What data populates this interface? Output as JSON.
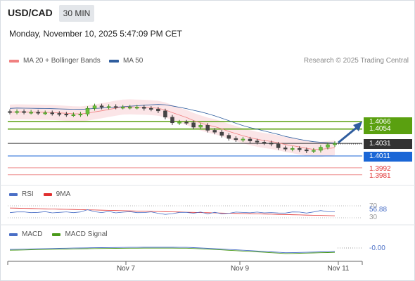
{
  "header": {
    "symbol": "USD/CAD",
    "interval": "30 MIN",
    "datetime": "Monday, November 10, 2025 5:47:09 PM CET"
  },
  "legend": {
    "ma20_label": "MA 20 + Bollinger Bands",
    "ma50_label": "MA 50",
    "copyright": "Research © 2025 Trading Central",
    "colors": {
      "ma20": "#f08080",
      "ma50": "#2f5d9e",
      "bands": "#fadadd"
    }
  },
  "price_levels": [
    {
      "value": "1.4066",
      "color": "#5aa010",
      "kind": "resistance"
    },
    {
      "value": "1.4054",
      "color": "#5aa010",
      "kind": "resistance"
    },
    {
      "value": "1.4031",
      "color": "#333333",
      "kind": "last"
    },
    {
      "value": "1.4011",
      "color": "#1a66d6",
      "kind": "pivot"
    },
    {
      "value": "1.3992",
      "color": "#e03030",
      "kind": "support"
    },
    {
      "value": "1.3981",
      "color": "#e03030",
      "kind": "support"
    }
  ],
  "rsi": {
    "label": "RSI",
    "ma_label": "9MA",
    "value": "56.88",
    "level_high": "70",
    "level_low": "30",
    "colors": {
      "rsi": "#4a6fc6",
      "ma": "#e03030"
    }
  },
  "macd": {
    "label": "MACD",
    "signal_label": "MACD Signal",
    "value": "-0.00",
    "colors": {
      "macd": "#4a6fc6",
      "signal": "#4a9a1a"
    }
  },
  "x_axis": {
    "dates": [
      "Nov 7",
      "Nov 9",
      "Nov 11"
    ]
  },
  "chart_data": {
    "type": "candlestick",
    "instrument": "USD/CAD",
    "timeframe": "30 MIN",
    "price_levels": [
      1.4066,
      1.4054,
      1.4031,
      1.4011,
      1.3992,
      1.3981
    ],
    "last_price": 1.4031,
    "closes": [
      1.4081,
      1.4082,
      1.4081,
      1.4081,
      1.408,
      1.408,
      1.4079,
      1.4078,
      1.4077,
      1.4077,
      1.4078,
      1.4087,
      1.4091,
      1.4089,
      1.409,
      1.4089,
      1.4089,
      1.4089,
      1.4089,
      1.4087,
      1.4086,
      1.4083,
      1.4073,
      1.4064,
      1.4065,
      1.4064,
      1.4057,
      1.406,
      1.4052,
      1.4049,
      1.4044,
      1.4039,
      1.4037,
      1.4038,
      1.4035,
      1.4033,
      1.4032,
      1.403,
      1.4024,
      1.4022,
      1.4023,
      1.4021,
      1.4019,
      1.402,
      1.4025,
      1.4029,
      1.4031
    ],
    "ma_direction": "down",
    "forecast_arrow": "up",
    "rsi_last": 56.88,
    "macd_last": -0.0
  }
}
